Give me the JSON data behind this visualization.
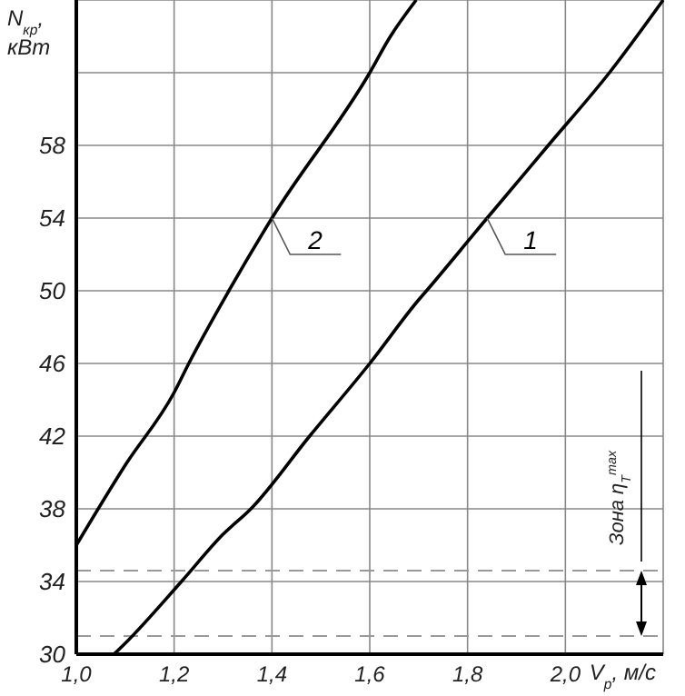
{
  "chart_data": {
    "type": "line",
    "xlabel": "V$_{р}$, м/с",
    "ylabel": "N$_{кр}$, кВт",
    "xlim": [
      1.0,
      2.2
    ],
    "ylim": [
      30,
      66
    ],
    "xticks": [
      {
        "value": 1.0,
        "label": "1,0"
      },
      {
        "value": 1.2,
        "label": "1,2"
      },
      {
        "value": 1.4,
        "label": "1,4"
      },
      {
        "value": 1.6,
        "label": "1,6"
      },
      {
        "value": 1.8,
        "label": "1,8"
      },
      {
        "value": 2.0,
        "label": "2,0"
      },
      {
        "value": 2.2,
        "label": null
      }
    ],
    "yticks": [
      30,
      34,
      38,
      42,
      46,
      50,
      54,
      58,
      {
        "value": 62,
        "label": null
      },
      {
        "value": 66,
        "label": null
      }
    ],
    "grid": true,
    "marker": "none",
    "line_style": "solid",
    "series": [
      {
        "name": "1",
        "color": "#000000",
        "x": [
          1.077,
          1.1,
          1.215,
          1.3,
          1.357,
          1.477,
          1.6,
          1.7,
          1.716,
          1.84,
          1.965,
          2.09,
          2.2
        ],
        "values": [
          30,
          30.6,
          34,
          36.6,
          38,
          42,
          46,
          49.5,
          50,
          54,
          58,
          62,
          66
        ]
      },
      {
        "name": "2",
        "color": "#000000",
        "x": [
          1.0,
          1.1,
          1.2,
          1.23,
          1.312,
          1.4,
          1.6,
          1.64,
          1.695
        ],
        "values": [
          36,
          40.4,
          44.4,
          46,
          50,
          54,
          62,
          63.9,
          66
        ]
      }
    ],
    "ref_lines": [
      {
        "axis": "y",
        "value": 34.6,
        "color": "#999999",
        "line_style": "dashed"
      },
      {
        "axis": "y",
        "value": 31,
        "color": "#999999",
        "line_style": "dashed"
      }
    ],
    "annotations": [
      "Зона η$_{T}$$^{max}$"
    ]
  }
}
